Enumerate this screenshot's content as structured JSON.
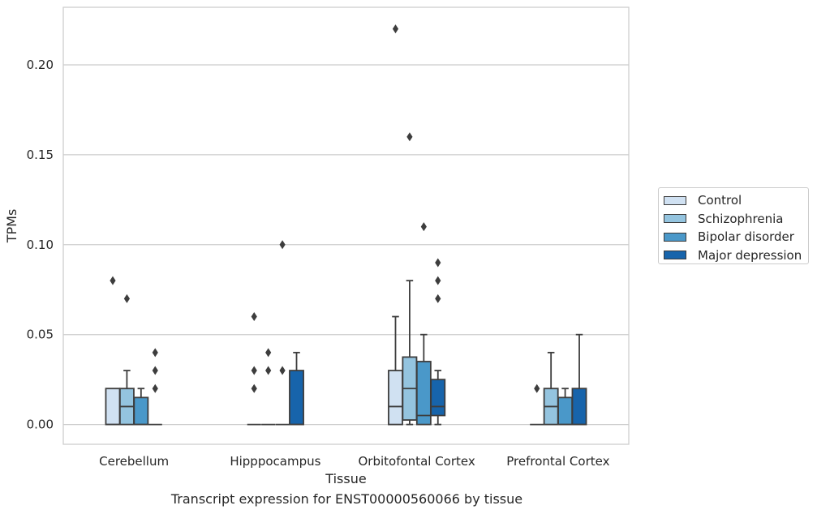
{
  "chart_data": {
    "type": "box",
    "title": "",
    "caption": "Transcript expression for ENST00000560066 by tissue",
    "xlabel": "Tissue",
    "ylabel": "TPMs",
    "ylim": [
      -0.011,
      0.232
    ],
    "yticks": [
      0.0,
      0.05,
      0.1,
      0.15,
      0.2
    ],
    "ytick_labels": [
      "0.00",
      "0.05",
      "0.10",
      "0.15",
      "0.20"
    ],
    "grid": "horizontal",
    "legend_position": "right",
    "categories": [
      "Cerebellum",
      "Hipppocampus",
      "Orbitofontal Cortex",
      "Prefrontal Cortex"
    ],
    "series": [
      {
        "name": "Control",
        "color": "#d0e1f2",
        "boxes": [
          {
            "q1": 0.0,
            "median": 0.0,
            "q3": 0.02,
            "whisker_low": 0.0,
            "whisker_high": 0.02,
            "outliers": [
              0.08
            ]
          },
          {
            "q1": 0.0,
            "median": 0.0,
            "q3": 0.0,
            "whisker_low": 0.0,
            "whisker_high": 0.0,
            "outliers": [
              0.02,
              0.03,
              0.06
            ]
          },
          {
            "q1": 0.0,
            "median": 0.01,
            "q3": 0.03,
            "whisker_low": 0.0,
            "whisker_high": 0.06,
            "outliers": [
              0.22
            ]
          },
          {
            "q1": 0.0,
            "median": 0.0,
            "q3": 0.0,
            "whisker_low": 0.0,
            "whisker_high": 0.0,
            "outliers": [
              0.02
            ]
          }
        ]
      },
      {
        "name": "Schizophrenia",
        "color": "#94c4df",
        "boxes": [
          {
            "q1": 0.0,
            "median": 0.01,
            "q3": 0.02,
            "whisker_low": 0.0,
            "whisker_high": 0.03,
            "outliers": [
              0.07
            ]
          },
          {
            "q1": 0.0,
            "median": 0.0,
            "q3": 0.0,
            "whisker_low": 0.0,
            "whisker_high": 0.0,
            "outliers": [
              0.03,
              0.04
            ]
          },
          {
            "q1": 0.0025,
            "median": 0.02,
            "q3": 0.0375,
            "whisker_low": 0.0,
            "whisker_high": 0.08,
            "outliers": [
              0.16
            ]
          },
          {
            "q1": 0.0,
            "median": 0.01,
            "q3": 0.02,
            "whisker_low": 0.0,
            "whisker_high": 0.04,
            "outliers": []
          }
        ]
      },
      {
        "name": "Bipolar disorder",
        "color": "#4a98c9",
        "boxes": [
          {
            "q1": 0.0,
            "median": 0.0,
            "q3": 0.015,
            "whisker_low": 0.0,
            "whisker_high": 0.02,
            "outliers": []
          },
          {
            "q1": 0.0,
            "median": 0.0,
            "q3": 0.0,
            "whisker_low": 0.0,
            "whisker_high": 0.0,
            "outliers": [
              0.03,
              0.1
            ]
          },
          {
            "q1": 0.0,
            "median": 0.005,
            "q3": 0.035,
            "whisker_low": 0.0,
            "whisker_high": 0.05,
            "outliers": [
              0.11
            ]
          },
          {
            "q1": 0.0,
            "median": 0.0,
            "q3": 0.015,
            "whisker_low": 0.0,
            "whisker_high": 0.02,
            "outliers": []
          }
        ]
      },
      {
        "name": "Major depression",
        "color": "#1764ab",
        "boxes": [
          {
            "q1": 0.0,
            "median": 0.0,
            "q3": 0.0,
            "whisker_low": 0.0,
            "whisker_high": 0.0,
            "outliers": [
              0.02,
              0.03,
              0.04
            ]
          },
          {
            "q1": 0.0,
            "median": 0.0,
            "q3": 0.03,
            "whisker_low": 0.0,
            "whisker_high": 0.04,
            "outliers": []
          },
          {
            "q1": 0.005,
            "median": 0.01,
            "q3": 0.025,
            "whisker_low": 0.0,
            "whisker_high": 0.03,
            "outliers": [
              0.07,
              0.08,
              0.09
            ]
          },
          {
            "q1": 0.0,
            "median": 0.0,
            "q3": 0.02,
            "whisker_low": 0.0,
            "whisker_high": 0.05,
            "outliers": []
          }
        ]
      }
    ]
  }
}
